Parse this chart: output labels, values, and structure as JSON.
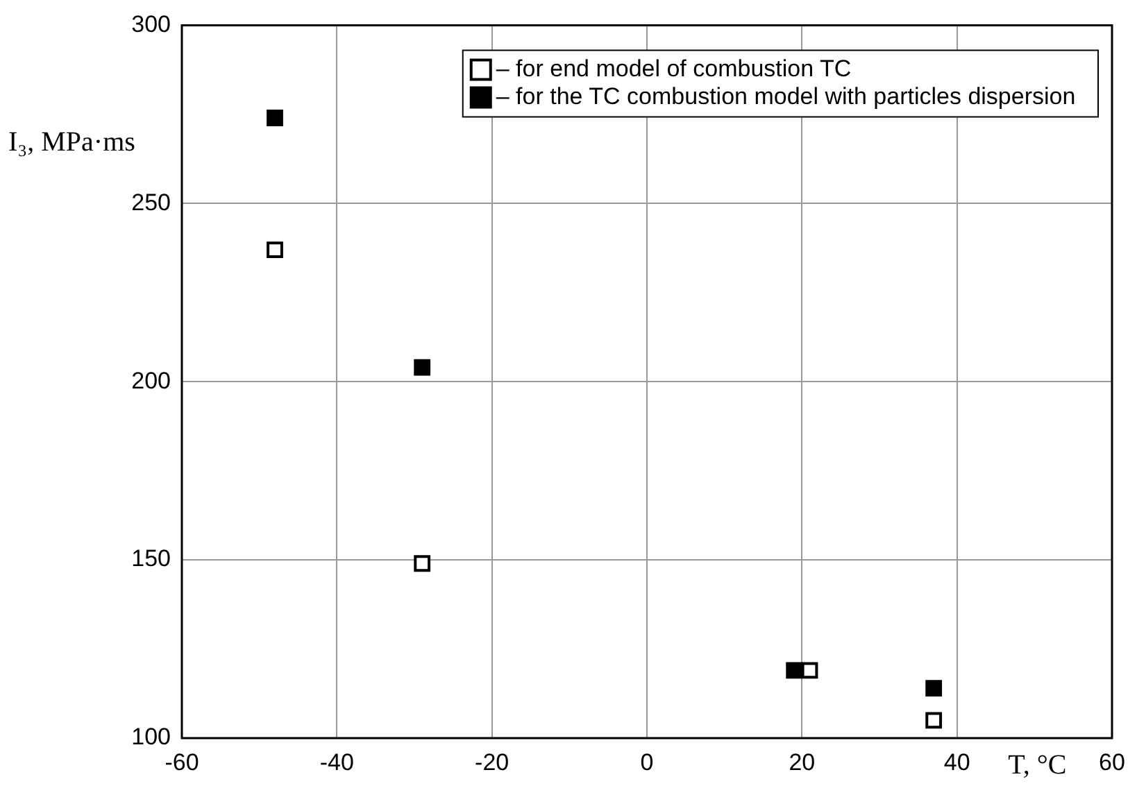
{
  "chart_data": {
    "type": "scatter",
    "xlabel": "T, °C",
    "ylabel": "I₃, MPa·ms",
    "xlim": [
      -60,
      60
    ],
    "xticks": [
      -60,
      -40,
      -20,
      0,
      20,
      40,
      60
    ],
    "ylim": [
      100,
      300
    ],
    "yticks": [
      100,
      150,
      200,
      250,
      300
    ],
    "grid": true,
    "legend": "top right",
    "marker": "square",
    "series": [
      {
        "name": "– for end model of combustion TC",
        "color": "#ffffff",
        "x": [
          -48,
          -29,
          21,
          37
        ],
        "values": [
          237,
          149,
          119,
          105
        ]
      },
      {
        "name": "– for the TC combustion model with particles dispersion",
        "color": "#000000",
        "x": [
          -48,
          -29,
          19,
          37
        ],
        "values": [
          274,
          204,
          119,
          114
        ]
      }
    ]
  }
}
